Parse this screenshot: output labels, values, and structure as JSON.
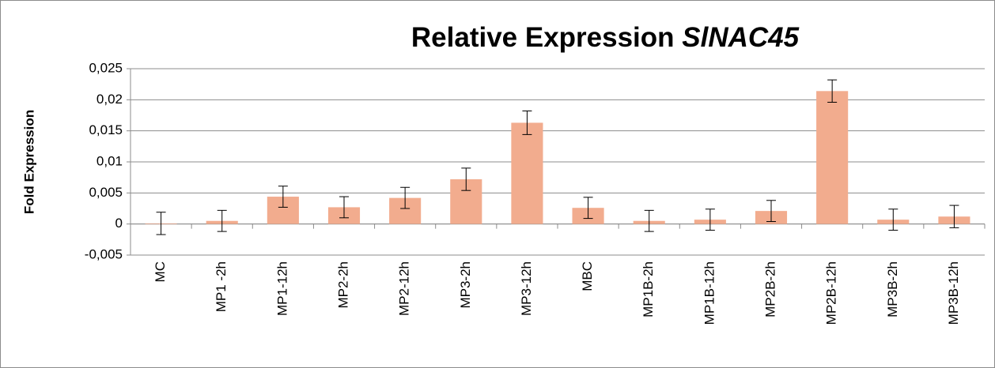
{
  "chart_data": {
    "type": "bar",
    "title": "Relative Expression",
    "title_gene": "SlNAC45",
    "y_label": "Fold Expression",
    "categories": [
      "MC",
      "MP1 -2h",
      "MP1-12h",
      "MP2-2h",
      "MP2-12h",
      "MP3-2h",
      "MP3-12h",
      "MBC",
      "MP1B-2h",
      "MP1B-12h",
      "MP2B-2h",
      "MP2B-12h",
      "MP3B-2h",
      "MP3B-12h"
    ],
    "values": [
      0.0001,
      0.0005,
      0.0044,
      0.0027,
      0.0042,
      0.0072,
      0.0163,
      0.0026,
      0.0005,
      0.0007,
      0.0021,
      0.0214,
      0.0007,
      0.0012
    ],
    "errors": [
      0.0018,
      0.0017,
      0.0017,
      0.0017,
      0.0017,
      0.0018,
      0.0019,
      0.0017,
      0.0017,
      0.0017,
      0.0017,
      0.0018,
      0.0017,
      0.0018
    ],
    "color": "#f2ac8e",
    "ylim": [
      -0.005,
      0.025
    ],
    "yticks": [
      {
        "value": -0.005,
        "label": "-0,005"
      },
      0,
      {
        "value": 0.005,
        "label": "0,005"
      },
      {
        "value": 0.01,
        "label": "0,01"
      },
      {
        "value": 0.015,
        "label": "0,015"
      },
      {
        "value": 0.02,
        "label": "0,02"
      },
      {
        "value": 0.025,
        "label": "0,025"
      }
    ],
    "grid": true
  }
}
